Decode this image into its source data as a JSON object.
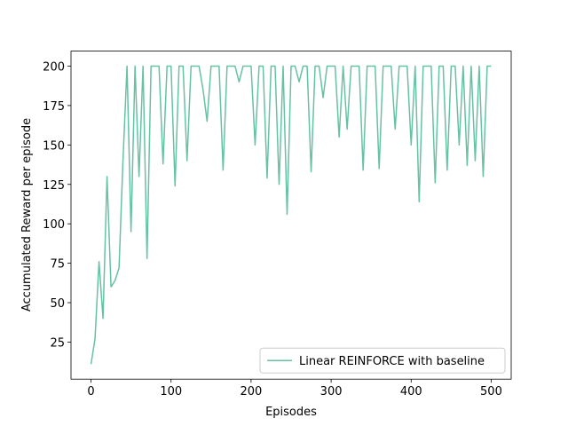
{
  "chart_data": {
    "type": "line",
    "xlabel": "Episodes",
    "ylabel": "Accumulated Reward per episode",
    "x": [
      0,
      5,
      10,
      15,
      20,
      25,
      30,
      35,
      40,
      45,
      50,
      55,
      60,
      65,
      70,
      75,
      80,
      85,
      90,
      95,
      100,
      105,
      110,
      115,
      120,
      125,
      130,
      135,
      140,
      145,
      150,
      155,
      160,
      165,
      170,
      175,
      180,
      185,
      190,
      195,
      200,
      205,
      210,
      215,
      220,
      225,
      230,
      235,
      240,
      245,
      250,
      255,
      260,
      265,
      270,
      275,
      280,
      285,
      290,
      295,
      300,
      305,
      310,
      315,
      320,
      325,
      330,
      335,
      340,
      345,
      350,
      355,
      360,
      365,
      370,
      375,
      380,
      385,
      390,
      395,
      400,
      405,
      410,
      415,
      420,
      425,
      430,
      435,
      440,
      445,
      450,
      455,
      460,
      465,
      470,
      475,
      480,
      485,
      490,
      495,
      500
    ],
    "series": [
      {
        "name": "Linear REINFORCE with baseline",
        "color": "#66c2a5",
        "values": [
          11,
          27,
          76,
          40,
          130,
          60,
          64,
          72,
          141,
          200,
          95,
          200,
          130,
          200,
          78,
          200,
          200,
          200,
          138,
          200,
          200,
          124,
          200,
          200,
          140,
          200,
          200,
          200,
          185,
          165,
          200,
          200,
          200,
          134,
          200,
          200,
          200,
          190,
          200,
          200,
          200,
          150,
          200,
          200,
          129,
          200,
          200,
          125,
          200,
          106,
          200,
          200,
          190,
          200,
          200,
          133,
          200,
          200,
          180,
          200,
          200,
          200,
          155,
          200,
          160,
          200,
          200,
          200,
          134,
          200,
          200,
          200,
          135,
          200,
          200,
          200,
          160,
          200,
          200,
          200,
          150,
          200,
          114,
          200,
          200,
          200,
          126,
          200,
          200,
          134,
          200,
          200,
          150,
          200,
          137,
          200,
          140,
          200,
          130,
          200,
          200
        ]
      }
    ],
    "xlim": [
      -25,
      525
    ],
    "ylim": [
      1.5,
      209.5
    ],
    "xticks": [
      0,
      100,
      200,
      300,
      400,
      500
    ],
    "yticks": [
      25,
      50,
      75,
      100,
      125,
      150,
      175,
      200
    ],
    "legend": "lower right"
  }
}
